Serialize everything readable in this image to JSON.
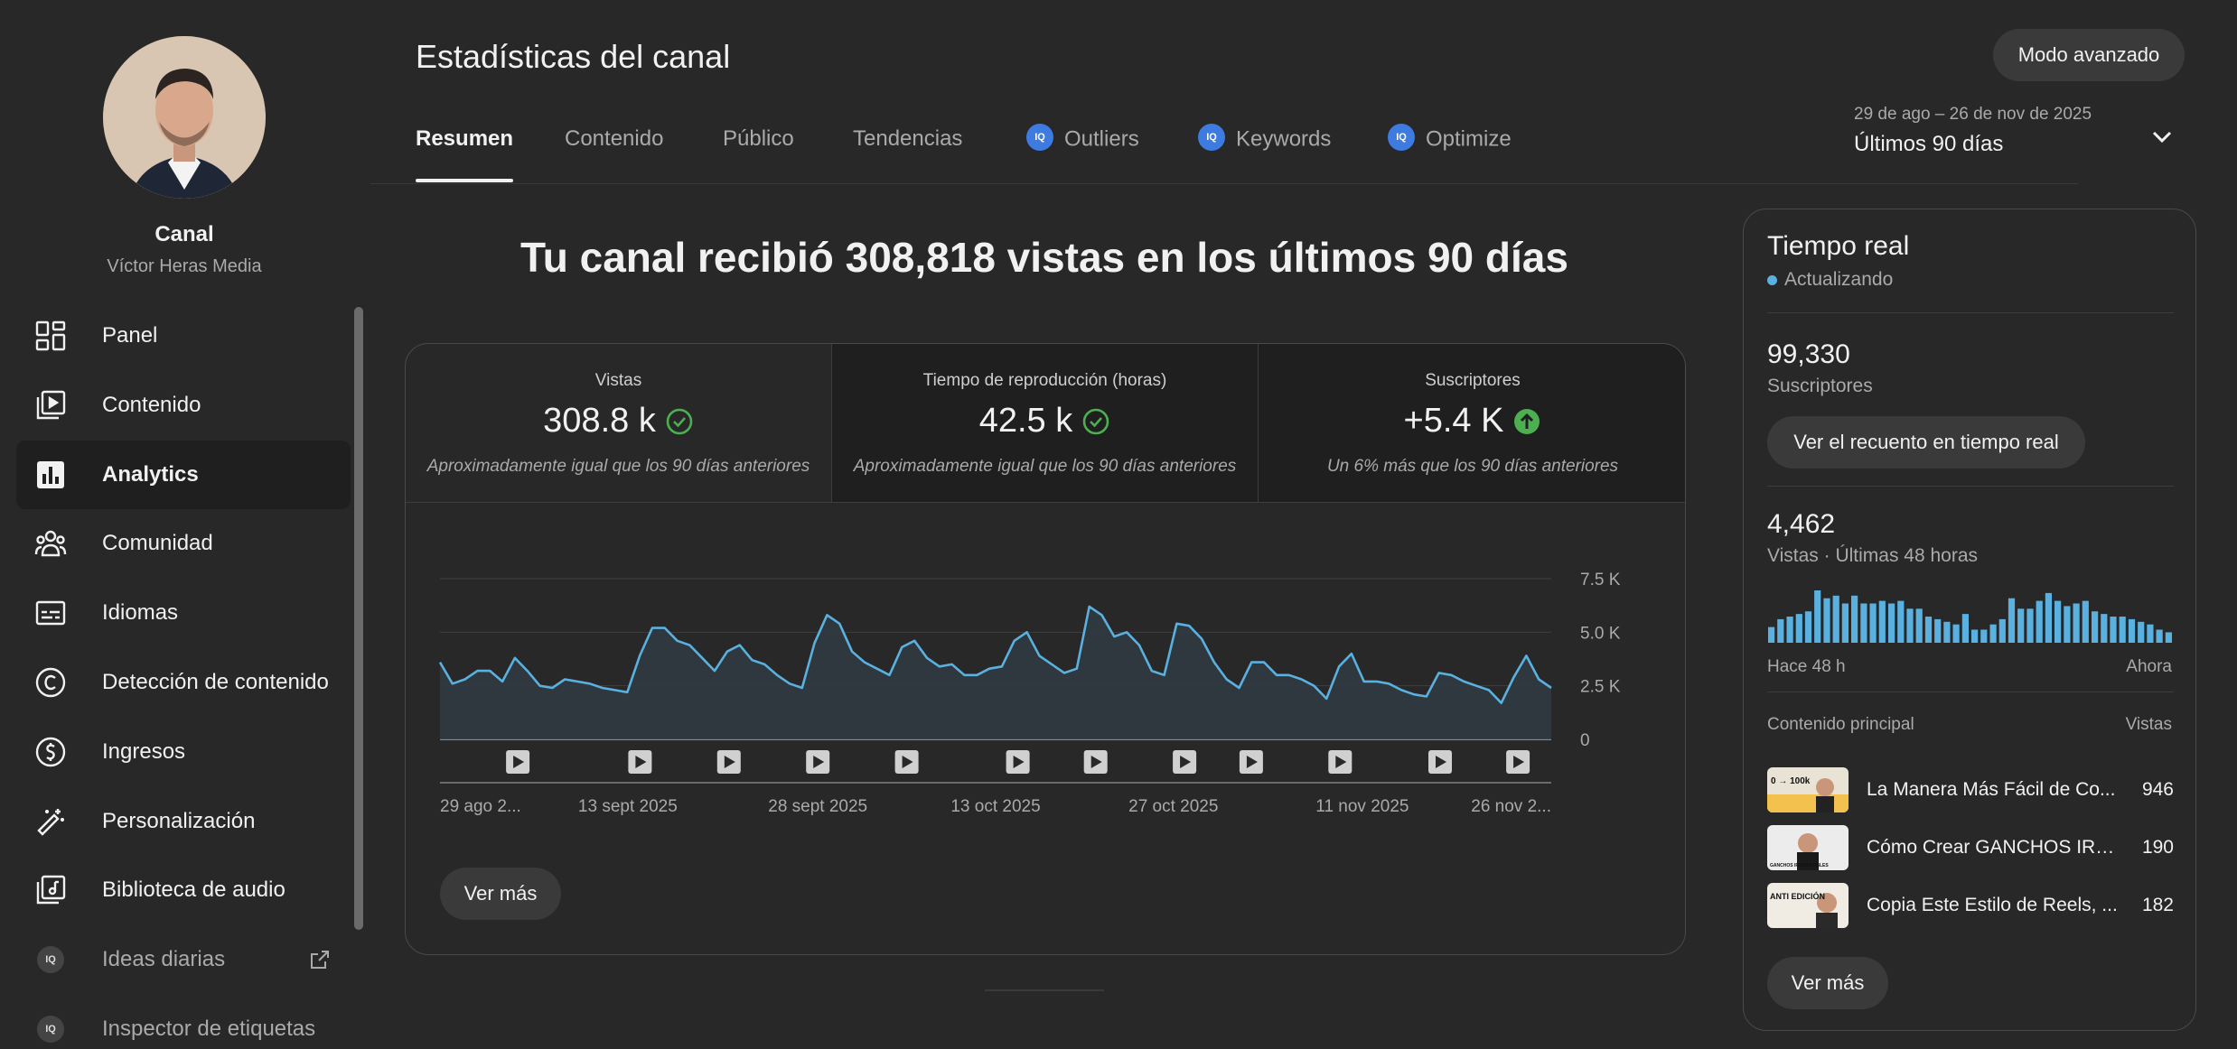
{
  "sidebar": {
    "channel_title": "Canal",
    "channel_name": "Víctor Heras Media",
    "items": [
      {
        "label": "Panel",
        "icon": "dashboard-icon"
      },
      {
        "label": "Contenido",
        "icon": "content-icon"
      },
      {
        "label": "Analytics",
        "icon": "analytics-icon",
        "active": true
      },
      {
        "label": "Comunidad",
        "icon": "community-icon"
      },
      {
        "label": "Idiomas",
        "icon": "subtitles-icon"
      },
      {
        "label": "Detección de contenido",
        "icon": "copyright-icon"
      },
      {
        "label": "Ingresos",
        "icon": "earn-icon"
      },
      {
        "label": "Personalización",
        "icon": "customization-icon"
      },
      {
        "label": "Biblioteca de audio",
        "icon": "audio-library-icon"
      },
      {
        "label": "Ideas diarias",
        "icon": "tubebuddy-icon",
        "external": true
      },
      {
        "label": "Inspector de etiquetas",
        "icon": "tubebuddy-icon"
      }
    ],
    "badge_text": "IQ"
  },
  "header": {
    "title": "Estadísticas del canal",
    "advanced_button": "Modo avanzado",
    "tabs": [
      "Resumen",
      "Contenido",
      "Público",
      "Tendencias",
      "Outliers",
      "Keywords",
      "Optimize"
    ],
    "active_tab": "Resumen",
    "date_range_sub": "29 de ago – 26 de nov de 2025",
    "date_range_main": "Últimos 90 días"
  },
  "main": {
    "headline": "Tu canal recibió 308,818 vistas en los últimos 90 días",
    "metrics": [
      {
        "title": "Vistas",
        "value": "308.8 k",
        "note": "Aproximadamente igual que los 90 días anteriores",
        "status": "check"
      },
      {
        "title": "Tiempo de reproducción (horas)",
        "value": "42.5 k",
        "note": "Aproximadamente igual que los 90 días anteriores",
        "status": "check"
      },
      {
        "title": "Suscriptores",
        "value": "+5.4 K",
        "note": "Un 6% más que los 90 días anteriores",
        "status": "up"
      }
    ],
    "see_more": "Ver más"
  },
  "chart_data": {
    "type": "area",
    "x_labels": [
      "29 ago 2...",
      "13 sept 2025",
      "28 sept 2025",
      "13 oct 2025",
      "27 oct 2025",
      "11 nov 2025",
      "26 nov 2..."
    ],
    "y_ticks": [
      "0",
      "2.5 K",
      "5.0 K",
      "7.5 K"
    ],
    "ylim": [
      0,
      7500
    ],
    "values": [
      3600,
      2600,
      2800,
      3200,
      3200,
      2700,
      3800,
      3200,
      2500,
      2400,
      2800,
      2700,
      2600,
      2400,
      2300,
      2200,
      3900,
      5200,
      5200,
      4600,
      4400,
      3800,
      3200,
      4100,
      4400,
      3700,
      3500,
      3000,
      2600,
      2400,
      4500,
      5800,
      5400,
      4100,
      3600,
      3300,
      3000,
      4300,
      4600,
      3800,
      3400,
      3500,
      3000,
      3000,
      3300,
      3400,
      4600,
      5000,
      3900,
      3500,
      3100,
      3300,
      6200,
      5800,
      4800,
      5000,
      4400,
      3200,
      3000,
      5400,
      5300,
      4700,
      3600,
      2800,
      2400,
      3600,
      3600,
      3000,
      3000,
      2800,
      2500,
      1900,
      3400,
      4000,
      2700,
      2700,
      2600,
      2300,
      2100,
      2000,
      3100,
      3000,
      2700,
      2500,
      2300,
      1700,
      2900,
      3900,
      2800,
      2400
    ],
    "grid": true,
    "video_markers": [
      7,
      18,
      26,
      34,
      42,
      52,
      59,
      67,
      73,
      81,
      90,
      97
    ],
    "color": "#5ab0df"
  },
  "realtime": {
    "title": "Tiempo real",
    "status": "Actualizando",
    "subscribers": "99,330",
    "subscribers_label": "Suscriptores",
    "count_button": "Ver el recuento en tiempo real",
    "views": "4,462",
    "views_label": "Vistas · Últimas 48 horas",
    "bars": [
      0.3,
      0.45,
      0.5,
      0.55,
      0.6,
      1.0,
      0.85,
      0.9,
      0.75,
      0.9,
      0.75,
      0.75,
      0.8,
      0.75,
      0.8,
      0.65,
      0.65,
      0.5,
      0.45,
      0.4,
      0.35,
      0.55,
      0.25,
      0.25,
      0.35,
      0.45,
      0.85,
      0.65,
      0.65,
      0.8,
      0.95,
      0.8,
      0.7,
      0.75,
      0.8,
      0.6,
      0.55,
      0.5,
      0.5,
      0.45,
      0.4,
      0.35,
      0.25,
      0.2
    ],
    "axis_left": "Hace 48 h",
    "axis_right": "Ahora",
    "top_label": "Contenido principal",
    "top_views_label": "Vistas",
    "top_content": [
      {
        "title": "La Manera Más Fácil de Co...",
        "views": "946"
      },
      {
        "title": "Cómo Crear GANCHOS IRR...",
        "views": "190"
      },
      {
        "title": "Copia Este Estilo de Reels, ...",
        "views": "182"
      }
    ],
    "thumb_texts": [
      "0 → 100k",
      "GANCHOS IRRESISTIBLES",
      "ANTI EDICIÓN"
    ],
    "see_more": "Ver más"
  }
}
